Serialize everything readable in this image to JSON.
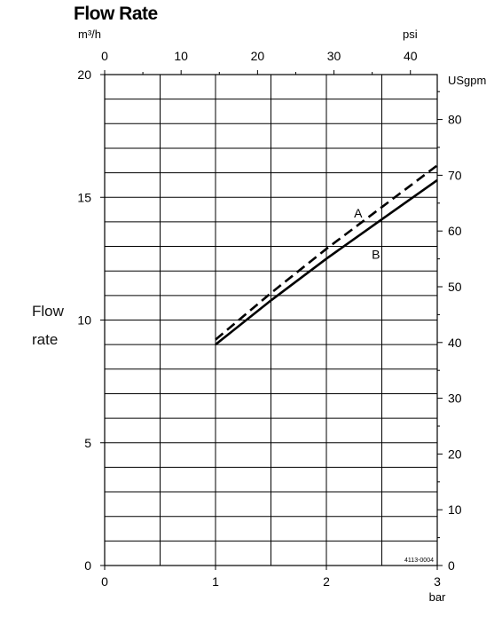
{
  "chart_data": {
    "type": "line",
    "title": "Flow Rate",
    "ylabel": "Flow rate",
    "y_unit_left": "m³/h",
    "y_unit_right": "USgpm",
    "x_unit_bottom": "bar",
    "x_unit_top": "psi",
    "xlim": [
      0,
      3
    ],
    "ylim": [
      0,
      20
    ],
    "x_ticks_bottom": [
      "0",
      "1",
      "2",
      "3"
    ],
    "x_ticks_top": [
      "0",
      "10",
      "20",
      "30",
      "40"
    ],
    "y_ticks_left": [
      "0",
      "5",
      "10",
      "15",
      "20"
    ],
    "y_ticks_right": [
      "0",
      "10",
      "20",
      "30",
      "40",
      "50",
      "60",
      "70",
      "80"
    ],
    "grid": true,
    "annotation": "4113-0004",
    "series": [
      {
        "name": "A",
        "style": "dashed",
        "x": [
          1.0,
          1.5,
          2.0,
          2.5,
          3.0
        ],
        "y": [
          9.2,
          11.1,
          12.9,
          14.6,
          16.3
        ]
      },
      {
        "name": "B",
        "style": "solid",
        "x": [
          1.0,
          1.5,
          2.0,
          2.5,
          3.0
        ],
        "y": [
          9.0,
          10.8,
          12.5,
          14.1,
          15.7
        ]
      }
    ]
  }
}
